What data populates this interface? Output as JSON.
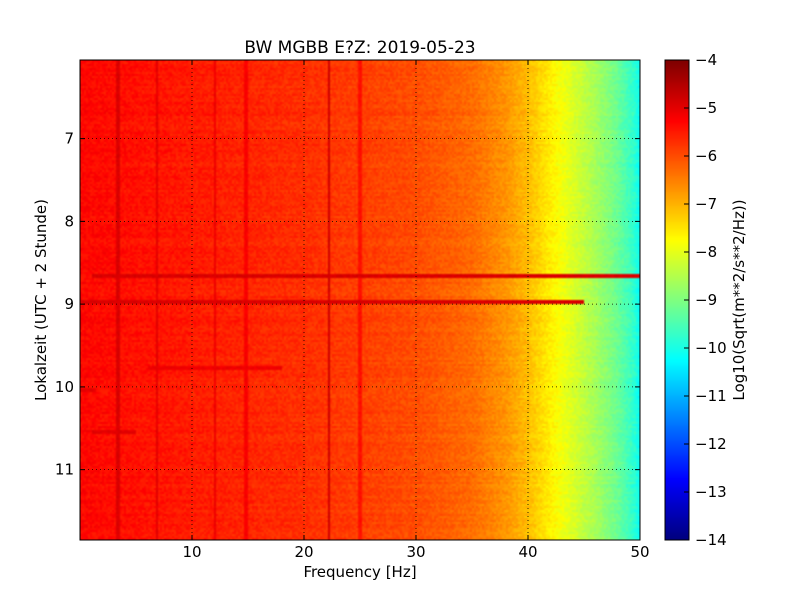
{
  "chart_data": {
    "type": "heatmap",
    "title": "BW MGBB E?Z: 2019-05-23",
    "xlabel": "Frequency [Hz]",
    "ylabel": "Lokalzeit (UTC + 2 Stunde)",
    "colorbar_label": "Log10(Sqrt(m**2/s**2/Hz))",
    "colormap": "jet",
    "xlim": [
      0,
      50
    ],
    "ylim": [
      11.85,
      6.05
    ],
    "y_inverted": true,
    "clim": [
      -14,
      -4
    ],
    "x_ticks": [
      10,
      20,
      30,
      40,
      50
    ],
    "y_ticks": [
      7,
      8,
      9,
      10,
      11
    ],
    "colorbar_ticks": [
      -4,
      -5,
      -6,
      -7,
      -8,
      -9,
      -10,
      -11,
      -12,
      -13,
      -14
    ],
    "grid": true,
    "base_level_by_frequency": [
      {
        "f": 0,
        "v": -5.3
      },
      {
        "f": 10,
        "v": -5.5
      },
      {
        "f": 20,
        "v": -5.7
      },
      {
        "f": 30,
        "v": -6.0
      },
      {
        "f": 35,
        "v": -6.3
      },
      {
        "f": 38,
        "v": -6.7
      },
      {
        "f": 40,
        "v": -7.1
      },
      {
        "f": 42,
        "v": -7.6
      },
      {
        "f": 44,
        "v": -8.1
      },
      {
        "f": 46,
        "v": -8.6
      },
      {
        "f": 48,
        "v": -9.2
      },
      {
        "f": 49.5,
        "v": -9.8
      },
      {
        "f": 50,
        "v": -10.2
      }
    ],
    "features": [
      {
        "kind": "vertical-line",
        "f": 3.4,
        "v": -4.9
      },
      {
        "kind": "vertical-line",
        "f": 6.9,
        "v": -5.0
      },
      {
        "kind": "vertical-line",
        "f": 12.0,
        "v": -5.1
      },
      {
        "kind": "vertical-line",
        "f": 14.8,
        "v": -5.2
      },
      {
        "kind": "vertical-line",
        "f": 22.2,
        "v": -4.8
      },
      {
        "kind": "vertical-line",
        "f": 25.0,
        "v": -5.4
      },
      {
        "kind": "horizontal-band",
        "t": 8.65,
        "f_start": 1,
        "f_end": 50,
        "v": -4.9
      },
      {
        "kind": "horizontal-band",
        "t": 8.98,
        "f_start": 0,
        "f_end": 45,
        "v": -4.9
      },
      {
        "kind": "horizontal-band",
        "t": 9.78,
        "f_start": 6,
        "f_end": 18,
        "v": -5.1
      },
      {
        "kind": "horizontal-band",
        "t": 10.55,
        "f_start": 1,
        "f_end": 5,
        "v": -5.0
      },
      {
        "kind": "horizontal-band",
        "t": 10.03,
        "f_start": 0,
        "f_end": 1.5,
        "v": -5.0
      }
    ]
  }
}
